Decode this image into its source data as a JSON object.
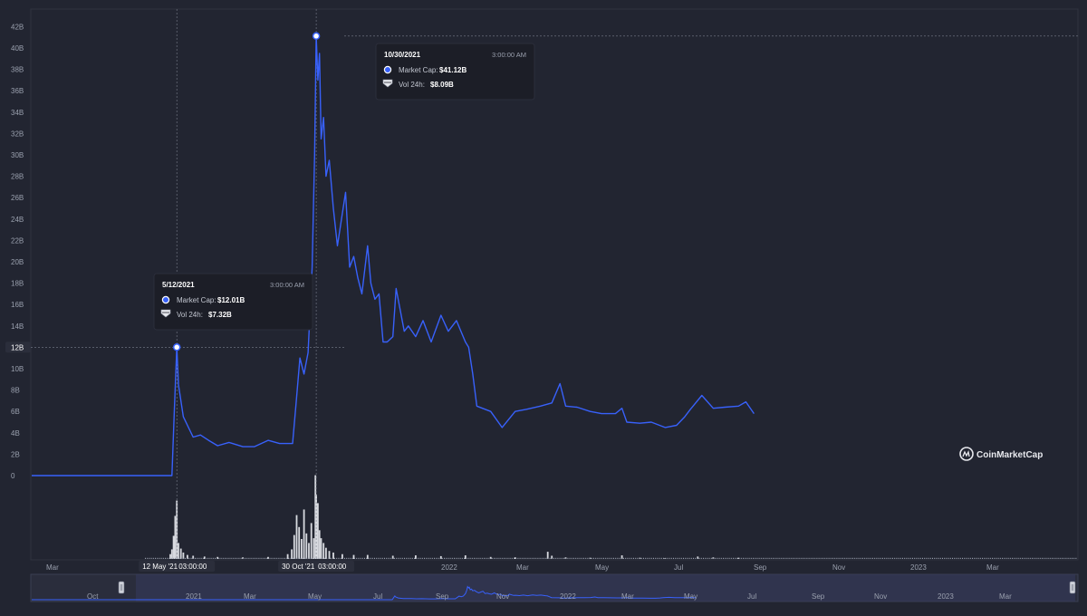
{
  "chart_data": {
    "type": "line",
    "ylim": [
      0,
      42
    ],
    "y_ticks": [
      "0",
      "2B",
      "4B",
      "6B",
      "8B",
      "10B",
      "12B",
      "14B",
      "16B",
      "18B",
      "20B",
      "22B",
      "24B",
      "26B",
      "28B",
      "30B",
      "32B",
      "34B",
      "36B",
      "38B",
      "40B",
      "42B"
    ],
    "x_ticks": [
      "Mar",
      "Jul",
      "Sep",
      "2022",
      "Mar",
      "May",
      "Jul",
      "Sep",
      "Nov",
      "2023",
      "Mar"
    ],
    "y_crosshair_label": "12B",
    "series": [
      {
        "unit": "B USD",
        "x": [
          "2020-11-15",
          "2021-03-05",
          "2021-05-06",
          "2021-05-09",
          "2021-05-12",
          "2021-05-14",
          "2021-05-20",
          "2021-06-01",
          "2021-06-10",
          "2021-06-20",
          "2021-07-01",
          "2021-07-15",
          "2021-08-01",
          "2021-08-15",
          "2021-09-01",
          "2021-09-15",
          "2021-10-01",
          "2021-10-05",
          "2021-10-10",
          "2021-10-15",
          "2021-10-20",
          "2021-10-25",
          "2021-10-28",
          "2021-10-30",
          "2021-11-01",
          "2021-11-03",
          "2021-11-05",
          "2021-11-08",
          "2021-11-11",
          "2021-11-15",
          "2021-11-20",
          "2021-11-25",
          "2021-12-01",
          "2021-12-05",
          "2021-12-10",
          "2021-12-15",
          "2021-12-20",
          "2021-12-25",
          "2022-01-01",
          "2022-01-05",
          "2022-01-10",
          "2022-01-15",
          "2022-01-20",
          "2022-01-25",
          "2022-02-01",
          "2022-02-05",
          "2022-02-10",
          "2022-02-15",
          "2022-02-20",
          "2022-03-01",
          "2022-03-10",
          "2022-03-20",
          "2022-04-01",
          "2022-04-10",
          "2022-04-20",
          "2022-05-01",
          "2022-05-05",
          "2022-05-10",
          "2022-05-15",
          "2022-06-01",
          "2022-06-15",
          "2022-07-01",
          "2022-07-15",
          "2022-08-01",
          "2022-08-15",
          "2022-08-25",
          "2022-09-01",
          "2022-09-15",
          "2022-10-01",
          "2022-10-15",
          "2022-11-01",
          "2022-11-09",
          "2022-11-15",
          "2022-12-01",
          "2022-12-15",
          "2023-01-01",
          "2023-01-15",
          "2023-01-25",
          "2023-02-01",
          "2023-02-15",
          "2023-03-01",
          "2023-03-15",
          "2023-04-01",
          "2023-04-10",
          "2023-04-20"
        ],
        "y": [
          0,
          0,
          0,
          6.2,
          12.01,
          8.5,
          5.5,
          3.6,
          3.8,
          3.3,
          2.8,
          3.1,
          2.7,
          2.7,
          3.3,
          3.0,
          3.0,
          6.5,
          11.0,
          9.5,
          11.5,
          19.5,
          30.0,
          41.12,
          37.0,
          39.5,
          31.5,
          33.5,
          28.0,
          29.5,
          25.0,
          21.5,
          24.5,
          26.5,
          19.5,
          20.5,
          18.5,
          17.0,
          21.5,
          18.0,
          16.5,
          17.0,
          12.5,
          12.5,
          13.0,
          17.5,
          15.5,
          13.5,
          14.0,
          13.0,
          14.5,
          12.5,
          15.0,
          13.5,
          14.5,
          12.5,
          12.0,
          9.5,
          6.5,
          6.0,
          4.5,
          6.0,
          6.2,
          6.5,
          6.8,
          8.6,
          6.5,
          6.4,
          6.0,
          5.8,
          5.8,
          6.3,
          5.0,
          4.9,
          5.0,
          4.5,
          4.7,
          5.5,
          6.2,
          7.5,
          6.3,
          6.4,
          6.5,
          6.9,
          5.8
        ]
      }
    ],
    "volume": {
      "unit": "B USD",
      "x": [
        "2021-05-04",
        "2021-05-06",
        "2021-05-08",
        "2021-05-10",
        "2021-05-12",
        "2021-05-14",
        "2021-05-17",
        "2021-05-20",
        "2021-05-25",
        "2021-06-01",
        "2021-06-15",
        "2021-07-01",
        "2021-08-01",
        "2021-09-01",
        "2021-09-25",
        "2021-09-30",
        "2021-10-03",
        "2021-10-06",
        "2021-10-09",
        "2021-10-12",
        "2021-10-15",
        "2021-10-18",
        "2021-10-21",
        "2021-10-24",
        "2021-10-27",
        "2021-10-29",
        "2021-10-30",
        "2021-11-01",
        "2021-11-03",
        "2021-11-05",
        "2021-11-08",
        "2021-11-11",
        "2021-11-15",
        "2021-11-20",
        "2021-12-01",
        "2021-12-15",
        "2022-01-01",
        "2022-02-01",
        "2022-03-01",
        "2022-04-01",
        "2022-05-01",
        "2022-06-01",
        "2022-07-01",
        "2022-08-10",
        "2022-08-15",
        "2022-09-01",
        "2022-10-01",
        "2022-11-09",
        "2022-12-01",
        "2023-01-01",
        "2023-02-10",
        "2023-03-01",
        "2023-04-01"
      ],
      "values": [
        0.6,
        1.2,
        2.9,
        5.4,
        7.32,
        2.0,
        1.3,
        0.8,
        0.5,
        0.4,
        0.3,
        0.25,
        0.2,
        0.25,
        0.6,
        1.2,
        3.0,
        5.5,
        4.0,
        2.5,
        6.2,
        3.2,
        2.0,
        4.5,
        2.6,
        10.5,
        8.09,
        7.0,
        3.6,
        2.6,
        2.0,
        1.4,
        1.0,
        0.8,
        0.6,
        0.5,
        0.5,
        0.4,
        0.45,
        0.35,
        0.45,
        0.25,
        0.2,
        0.9,
        0.4,
        0.2,
        0.15,
        0.45,
        0.15,
        0.1,
        0.3,
        0.2,
        0.15
      ]
    },
    "markers": [
      {
        "date": "5/12/2021",
        "time": "3:00:00 AM",
        "market_cap_label": "Market Cap:",
        "market_cap": "$12.01B",
        "vol_label": "Vol 24h:",
        "vol": "$7.32B",
        "x_label_date": "12 May '21",
        "x_label_time": "03:00:00",
        "x": "2021-05-12",
        "y": 12.01
      },
      {
        "date": "10/30/2021",
        "time": "3:00:00 AM",
        "market_cap_label": "Market Cap:",
        "market_cap": "$41.12B",
        "vol_label": "Vol 24h:",
        "vol": "$8.09B",
        "x_label_date": "30 Oct '21",
        "x_label_time": "03:00:00",
        "x": "2021-10-30",
        "y": 41.12
      }
    ],
    "navigator": {
      "x_ticks": [
        "Oct",
        "2021",
        "Mar",
        "May",
        "Jul",
        "Sep",
        "Nov",
        "2022",
        "Mar",
        "May",
        "Jul",
        "Sep",
        "Nov",
        "2023",
        "Mar"
      ]
    },
    "watermark": "CoinMarketCap",
    "colors": {
      "line": "#3861fb",
      "background": "#222531",
      "grid_text": "#9aa0ae",
      "volume": "#d8dae0"
    }
  }
}
